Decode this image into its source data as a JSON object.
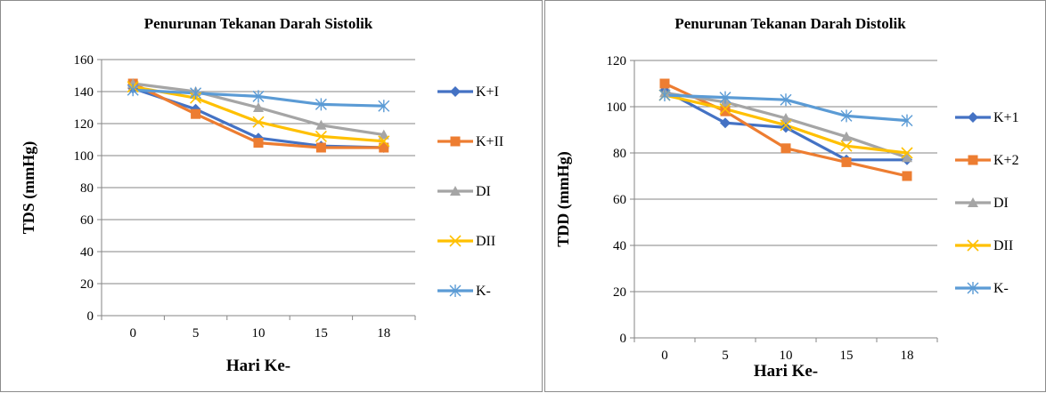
{
  "chart_data": [
    {
      "type": "line",
      "title": "Penurunan Tekanan Darah Sistolik",
      "xlabel": "Hari Ke-",
      "ylabel": "TDS (mmHg)",
      "categories": [
        "0",
        "5",
        "10",
        "15",
        "18"
      ],
      "ylim": [
        0,
        160
      ],
      "yticks": [
        0,
        20,
        40,
        60,
        80,
        100,
        120,
        140,
        160
      ],
      "grid": true,
      "legend_position": "right",
      "series": [
        {
          "name": "K+I",
          "color": "#4472c4",
          "marker": "diamond",
          "values": [
            142,
            129,
            111,
            106,
            105
          ]
        },
        {
          "name": "K+II",
          "color": "#ed7d31",
          "marker": "square",
          "values": [
            145,
            126,
            108,
            105,
            105
          ]
        },
        {
          "name": "DI",
          "color": "#a5a5a5",
          "marker": "triangle",
          "values": [
            145,
            140,
            130,
            119,
            113
          ]
        },
        {
          "name": "DII",
          "color": "#ffc000",
          "marker": "x",
          "values": [
            143,
            136,
            121,
            112,
            109
          ]
        },
        {
          "name": "K-",
          "color": "#5b9bd5",
          "marker": "star",
          "values": [
            141,
            139,
            137,
            132,
            131
          ]
        }
      ]
    },
    {
      "type": "line",
      "title": "Penurunan Tekanan Darah Distolik",
      "xlabel": "Hari Ke-",
      "ylabel": "TDD (mmHg)",
      "categories": [
        "0",
        "5",
        "10",
        "15",
        "18"
      ],
      "ylim": [
        0,
        120
      ],
      "yticks": [
        0,
        20,
        40,
        60,
        80,
        100,
        120
      ],
      "grid": true,
      "legend_position": "right",
      "series": [
        {
          "name": "K+1",
          "color": "#4472c4",
          "marker": "diamond",
          "values": [
            107,
            93,
            91,
            77,
            77
          ]
        },
        {
          "name": "K+2",
          "color": "#ed7d31",
          "marker": "square",
          "values": [
            110,
            98,
            82,
            76,
            70
          ]
        },
        {
          "name": "DI",
          "color": "#a5a5a5",
          "marker": "triangle",
          "values": [
            106,
            102,
            95,
            87,
            78
          ]
        },
        {
          "name": "DII",
          "color": "#ffc000",
          "marker": "x",
          "values": [
            105,
            99,
            92,
            83,
            80
          ]
        },
        {
          "name": "K-",
          "color": "#5b9bd5",
          "marker": "star",
          "values": [
            105,
            104,
            103,
            96,
            94
          ]
        }
      ]
    }
  ]
}
